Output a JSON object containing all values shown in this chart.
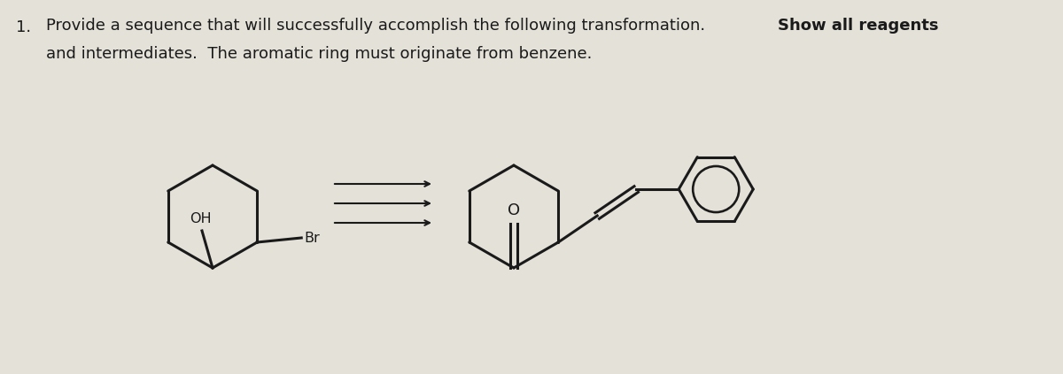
{
  "bg_color": "#e4e1d8",
  "text_color": "#1a1a1a",
  "title_line1": "Provide a sequence that will successfully accomplish the following transformation.  Show all reagents",
  "title_bold_part": "Show all reagents",
  "title_line2": "and intermediates.  The aromatic ring must originate from benzene.",
  "number": "1.",
  "font_size_main": 13.0,
  "font_family": "Arial",
  "arrow_color": "#1a1a1a",
  "bond_color": "#1a1a1a",
  "bond_lw": 2.2,
  "mol_lw": 2.2
}
